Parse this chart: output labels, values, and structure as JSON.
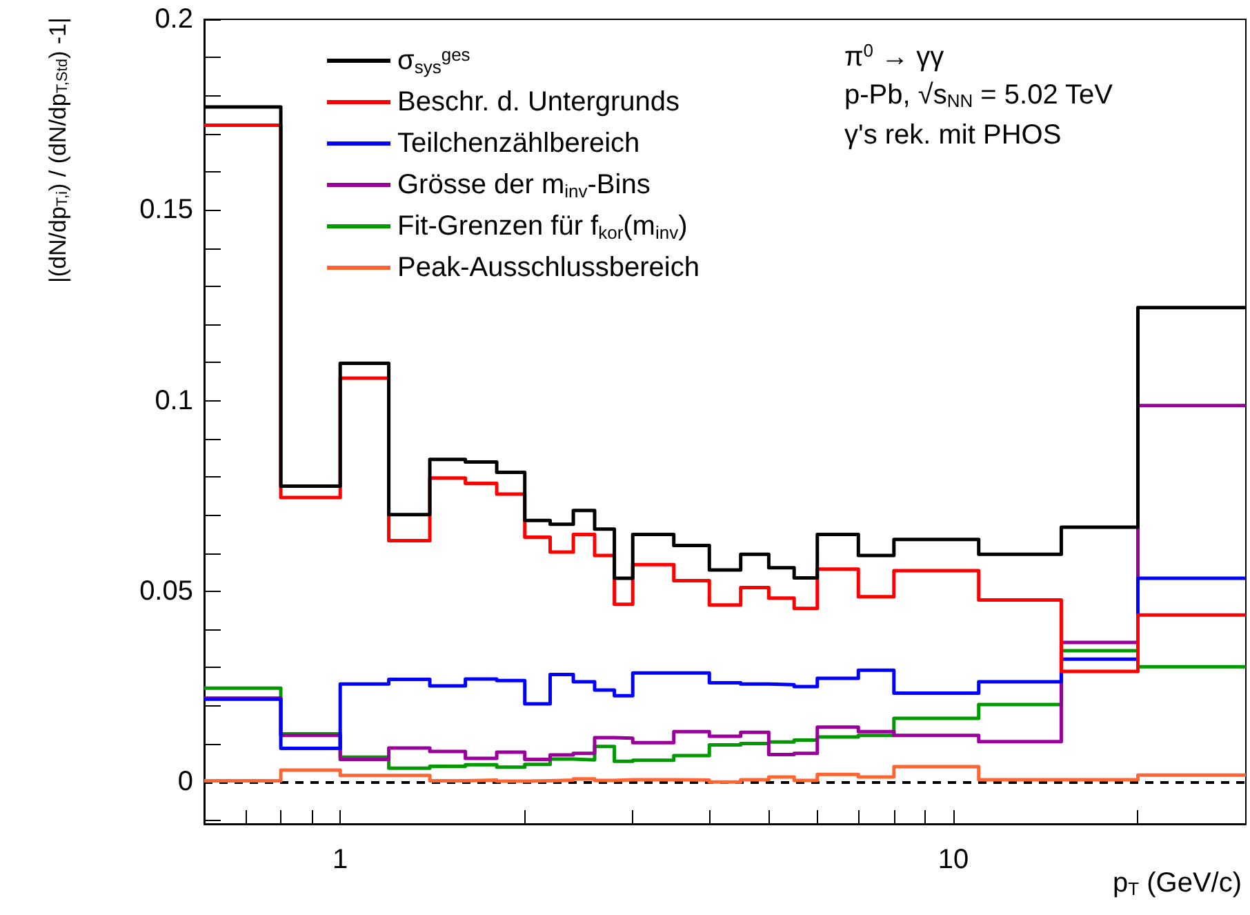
{
  "chart_data": {
    "type": "histogram",
    "xlabel": "p$_{T}$ (GeV/c)",
    "ylabel": "|(dN/dp$_{T,i}$) / (dN/dp$_{T,Std}$) -1|",
    "bins": [
      0.6,
      0.8,
      1.0,
      1.2,
      1.4,
      1.6,
      1.8,
      2.0,
      2.2,
      2.4,
      2.6,
      2.8,
      3.0,
      3.5,
      4.0,
      4.5,
      5.0,
      5.5,
      6.0,
      7.0,
      8.0,
      11,
      15,
      20,
      30
    ],
    "series": [
      {
        "name": "σ$_{sys}$$^{ges}$",
        "color": "#000000",
        "values": [
          0.177,
          0.0776,
          0.1098,
          0.0701,
          0.0846,
          0.0839,
          0.0812,
          0.0686,
          0.0676,
          0.0712,
          0.0663,
          0.0534,
          0.0649,
          0.062,
          0.0556,
          0.0597,
          0.0562,
          0.0535,
          0.0649,
          0.0594,
          0.0636,
          0.0597,
          0.0668,
          0.1244
        ]
      },
      {
        "name": "Beschr. d. Untergrunds",
        "color": "#ff0000",
        "values": [
          0.1722,
          0.0746,
          0.1059,
          0.0633,
          0.0797,
          0.0783,
          0.0755,
          0.0642,
          0.0603,
          0.0649,
          0.0594,
          0.0466,
          0.057,
          0.0528,
          0.0464,
          0.051,
          0.0482,
          0.0455,
          0.0558,
          0.0486,
          0.0554,
          0.0477,
          0.029,
          0.0438
        ]
      },
      {
        "name": "Teilchenzählbereich",
        "color": "#0000ff",
        "values": [
          0.0217,
          0.0088,
          0.0257,
          0.0269,
          0.0252,
          0.027,
          0.0266,
          0.0205,
          0.0282,
          0.0263,
          0.0241,
          0.0226,
          0.0286,
          0.0286,
          0.026,
          0.0257,
          0.0255,
          0.025,
          0.0272,
          0.0293,
          0.0233,
          0.0263,
          0.0322,
          0.0534
        ]
      },
      {
        "name": "Grösse der m$_{inv}$-Bins",
        "color": "#990099",
        "values": [
          0.022,
          0.0122,
          0.0059,
          0.0089,
          0.008,
          0.0062,
          0.0078,
          0.0059,
          0.0071,
          0.0075,
          0.0116,
          0.0115,
          0.0103,
          0.0132,
          0.012,
          0.013,
          0.0072,
          0.0075,
          0.0144,
          0.0132,
          0.0122,
          0.0106,
          0.0366,
          0.0987
        ]
      },
      {
        "name": "Fit-Grenzen für f$_{kor}$(m$_{inv}$)",
        "color": "#009900",
        "values": [
          0.0246,
          0.0126,
          0.0065,
          0.0036,
          0.0041,
          0.0045,
          0.0039,
          0.0046,
          0.006,
          0.0058,
          0.0093,
          0.0054,
          0.0057,
          0.0069,
          0.0097,
          0.0101,
          0.0105,
          0.011,
          0.0118,
          0.0122,
          0.0167,
          0.0203,
          0.0344,
          0.0302
        ]
      },
      {
        "name": "Peak-Ausschlussbereich",
        "color": "#ff6633",
        "values": [
          0.0003,
          0.0031,
          0.0017,
          0.0017,
          0.0003,
          0.0005,
          0.0002,
          0.0003,
          0.0005,
          0.0008,
          0.0004,
          0.0006,
          0.0006,
          0.0005,
          0.0,
          0.0006,
          0.0013,
          0.0004,
          0.002,
          0.0013,
          0.004,
          0.0006,
          0.0006,
          0.0018
        ]
      }
    ],
    "xlim": [
      0.6,
      30
    ],
    "xticks": [
      {
        "value": 0.6,
        "label": null
      },
      {
        "value": 0.7,
        "label": null
      },
      {
        "value": 0.8,
        "label": null
      },
      {
        "value": 0.9,
        "label": null
      },
      1,
      {
        "value": 2,
        "label": null
      },
      {
        "value": 3,
        "label": null
      },
      {
        "value": 4,
        "label": null
      },
      {
        "value": 5,
        "label": null
      },
      {
        "value": 6,
        "label": null
      },
      {
        "value": 7,
        "label": null
      },
      {
        "value": 8,
        "label": null
      },
      {
        "value": 9,
        "label": null
      },
      10,
      {
        "value": 20,
        "label": null
      }
    ],
    "ylim": [
      -0.011,
      0.2
    ],
    "yticks": [
      {
        "value": -0.01,
        "label": null
      },
      0,
      {
        "value": 0.01,
        "label": null
      },
      {
        "value": 0.02,
        "label": null
      },
      {
        "value": 0.03,
        "label": null
      },
      {
        "value": 0.04,
        "label": null
      },
      0.05,
      {
        "value": 0.06,
        "label": null
      },
      {
        "value": 0.07,
        "label": null
      },
      {
        "value": 0.08,
        "label": null
      },
      {
        "value": 0.09,
        "label": null
      },
      0.1,
      {
        "value": 0.11,
        "label": null
      },
      {
        "value": 0.12,
        "label": null
      },
      {
        "value": 0.13,
        "label": null
      },
      {
        "value": 0.14,
        "label": null
      },
      0.15,
      {
        "value": 0.16,
        "label": null
      },
      {
        "value": 0.17,
        "label": null
      },
      {
        "value": 0.18,
        "label": null
      },
      {
        "value": 0.19,
        "label": null
      },
      0.2
    ],
    "log": "x",
    "grid": false,
    "legend": "top left",
    "ref_lines": [
      {
        "axis": "y",
        "value": 0,
        "color": "#000000",
        "line_style": "dashed"
      }
    ],
    "annotations": [
      "π$^{0}$ → γγ",
      "p-Pb, √s$_{NN}$ = 5.02 TeV",
      "γ's rek. mit PHOS"
    ]
  }
}
